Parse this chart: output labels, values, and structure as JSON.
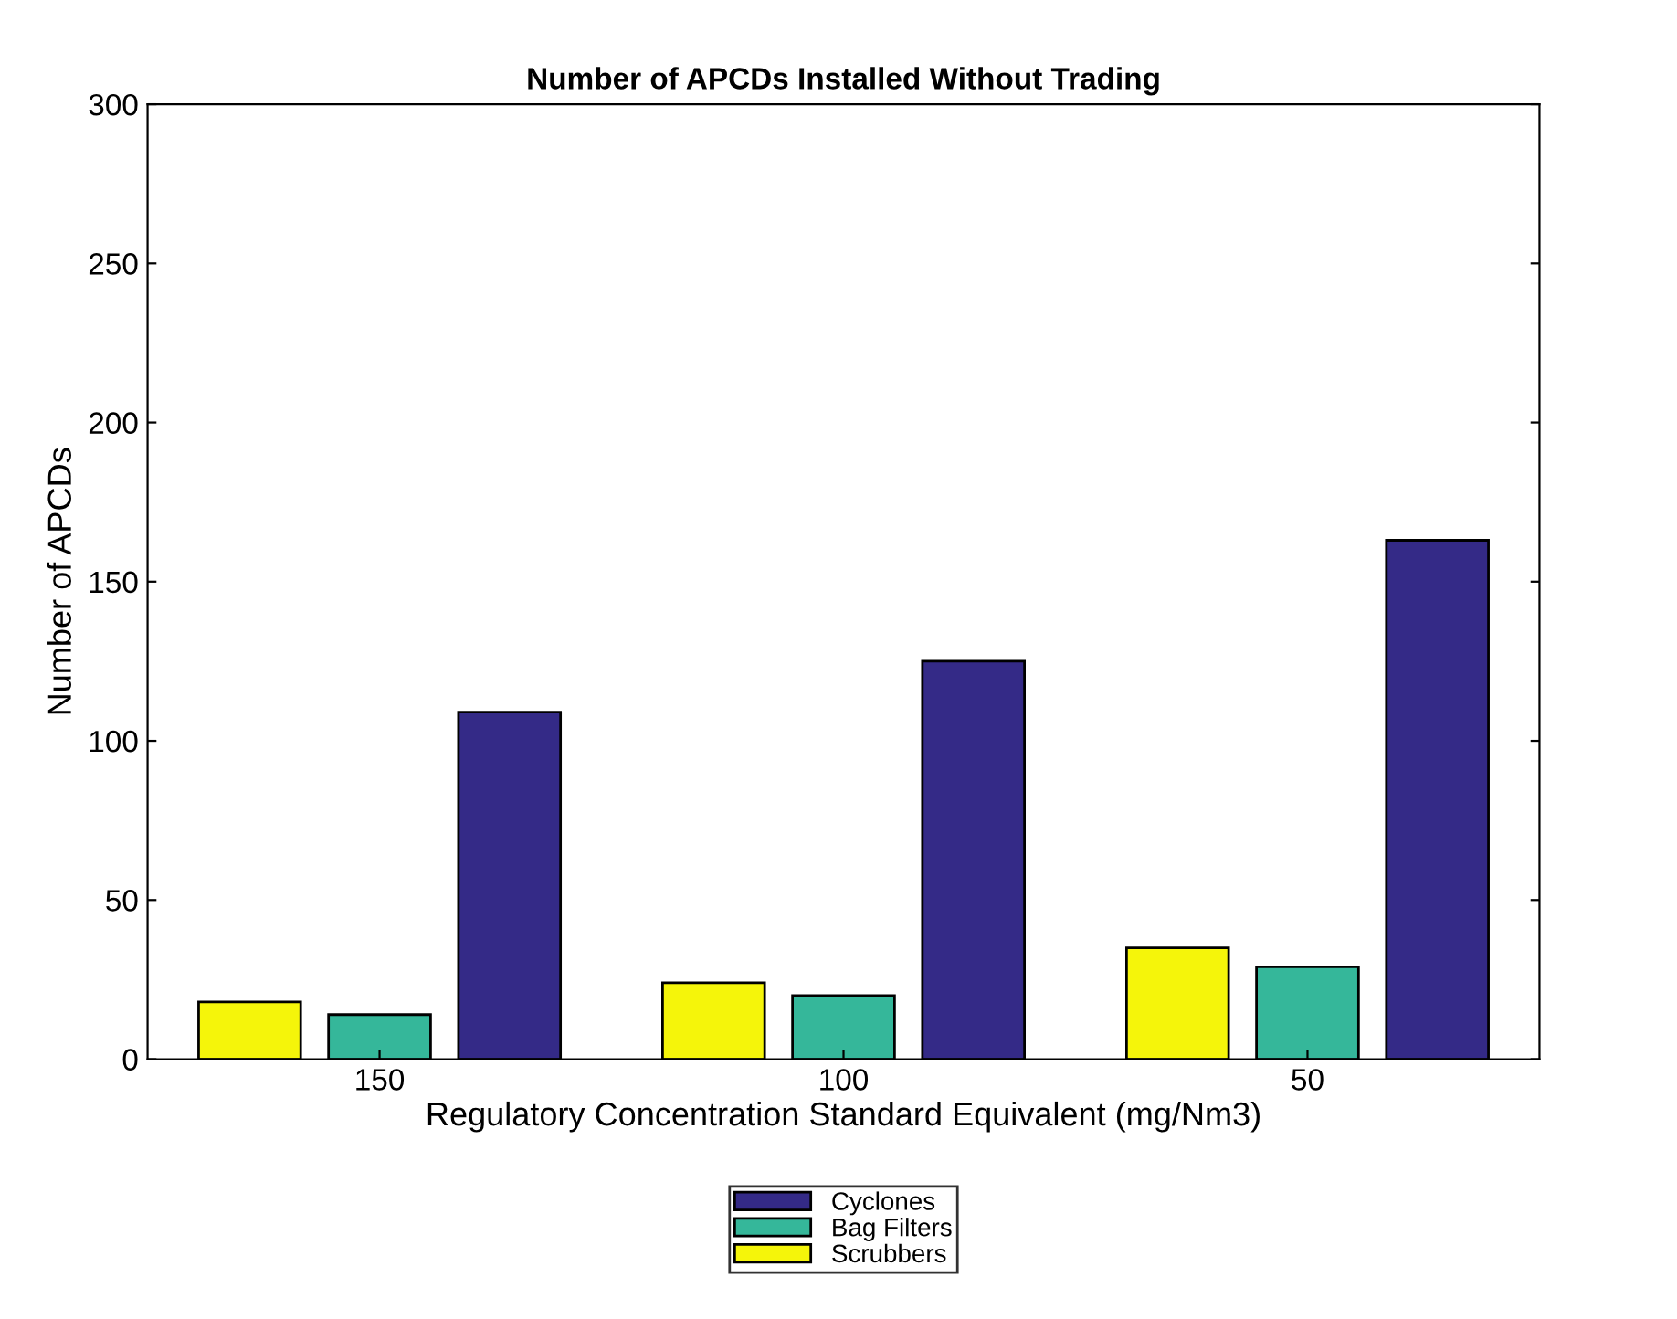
{
  "chart_data": {
    "type": "bar",
    "title": "Number of APCDs Installed Without Trading",
    "xlabel": "Regulatory Concentration Standard Equivalent (mg/Nm3)",
    "ylabel": "Number of APCDs",
    "categories": [
      "150",
      "100",
      "50"
    ],
    "series": [
      {
        "name": "Scrubbers",
        "color": "#f5f50a",
        "values": [
          18,
          24,
          35
        ]
      },
      {
        "name": "Bag Filters",
        "color": "#35b79a",
        "values": [
          14,
          20,
          29
        ]
      },
      {
        "name": "Cyclones",
        "color": "#342a87",
        "values": [
          109,
          125,
          163
        ]
      }
    ],
    "ylim": [
      0,
      300
    ],
    "yticks": [
      0,
      50,
      100,
      150,
      200,
      250,
      300
    ],
    "grid": false,
    "legend": "bottom"
  }
}
